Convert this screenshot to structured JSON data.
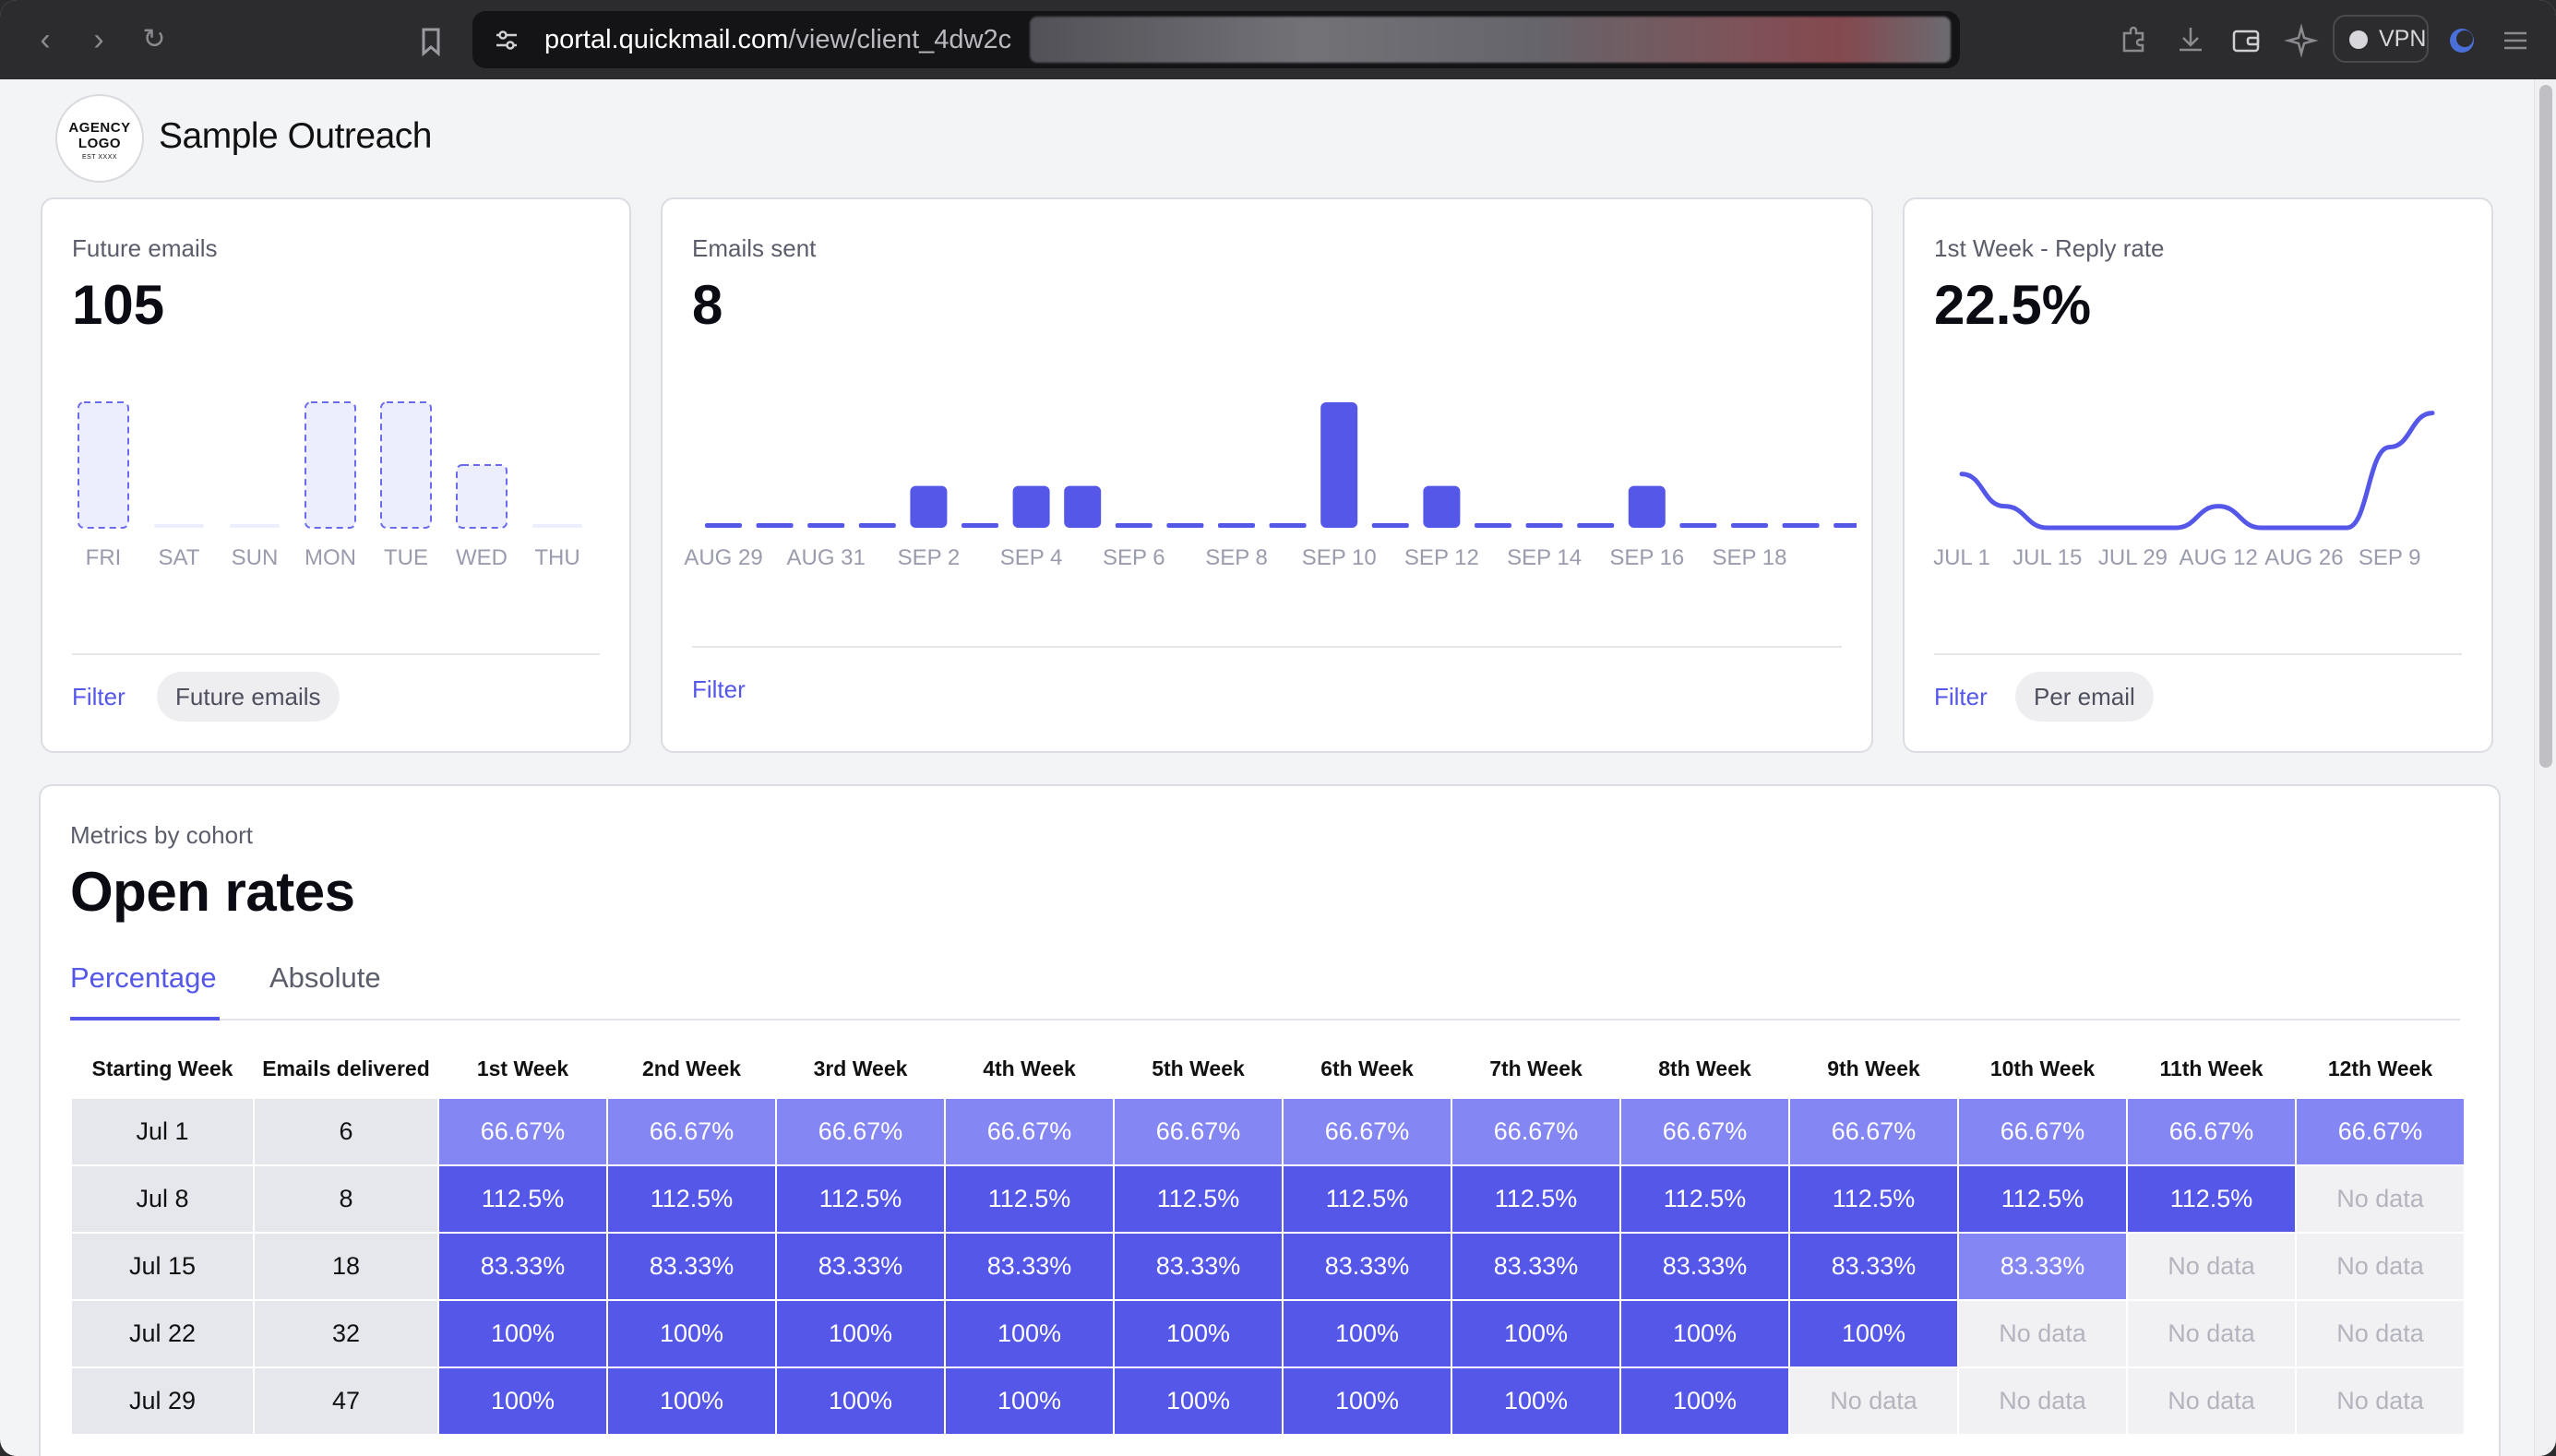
{
  "browser": {
    "url_host": "portal.quickmail.com",
    "url_path": "/view/client_4dw2c",
    "vpn_label": "VPN",
    "icons": [
      "back-icon",
      "forward-icon",
      "reload-icon",
      "bookmark-icon",
      "site-settings-icon",
      "extensions-icon",
      "downloads-icon",
      "wallet-icon",
      "ai-sparkle-icon",
      "profile-icon",
      "menu-icon"
    ]
  },
  "app": {
    "logo_line1": "AGENCY",
    "logo_line2": "LOGO",
    "logo_tagline": "EST XXXX",
    "title": "Sample Outreach"
  },
  "cards": {
    "future": {
      "label": "Future emails",
      "value": "105",
      "filter_label": "Filter",
      "chip_label": "Future emails"
    },
    "sent": {
      "label": "Emails sent",
      "value": "8",
      "filter_label": "Filter"
    },
    "reply": {
      "label": "1st Week - Reply rate",
      "value": "22.5%",
      "filter_label": "Filter",
      "chip_label": "Per email"
    }
  },
  "chart_data": [
    {
      "type": "bar",
      "style": "dashed-outline",
      "categories": [
        "FRI",
        "SAT",
        "SUN",
        "MON",
        "TUE",
        "WED",
        "THU"
      ],
      "values": [
        2,
        0,
        0,
        2,
        2,
        1,
        0
      ],
      "ylim": [
        0,
        2
      ]
    },
    {
      "type": "bar",
      "categories": [
        "AUG 29",
        "AUG 30",
        "AUG 31",
        "SEP 1",
        "SEP 2",
        "SEP 3",
        "SEP 4",
        "SEP 5",
        "SEP 6",
        "SEP 7",
        "SEP 8",
        "SEP 9",
        "SEP 10",
        "SEP 11",
        "SEP 12",
        "SEP 13",
        "SEP 14",
        "SEP 15",
        "SEP 16",
        "SEP 17",
        "SEP 18",
        "SEP 19",
        "SEP 20"
      ],
      "tick_labels": [
        "AUG 29",
        "AUG 31",
        "SEP 2",
        "SEP 4",
        "SEP 6",
        "SEP 8",
        "SEP 10",
        "SEP 12",
        "SEP 14",
        "SEP 16",
        "SEP 18"
      ],
      "values": [
        0,
        0,
        0,
        0,
        1,
        0,
        1,
        1,
        0,
        0,
        0,
        0,
        3,
        0,
        1,
        0,
        0,
        0,
        1,
        0,
        0,
        0,
        0
      ],
      "ylim": [
        0,
        3
      ],
      "color": "#5457e8"
    },
    {
      "type": "line",
      "x": [
        "JUL 1",
        "JUL 8",
        "JUL 15",
        "JUL 22",
        "JUL 29",
        "AUG 5",
        "AUG 12",
        "AUG 19",
        "AUG 26",
        "SEP 2",
        "SEP 9",
        "SEP 16"
      ],
      "tick_labels": [
        "JUL 1",
        "JUL 15",
        "JUL 29",
        "AUG 12",
        "AUG 26",
        "SEP 9"
      ],
      "values": [
        15,
        6,
        0,
        0,
        0,
        0,
        6,
        0,
        0,
        0,
        22.5,
        32
      ],
      "ylim": [
        0,
        35
      ],
      "color": "#5457e8"
    }
  ],
  "cohort": {
    "subtitle": "Metrics by cohort",
    "title": "Open rates",
    "tabs": [
      {
        "label": "Percentage",
        "active": true
      },
      {
        "label": "Absolute",
        "active": false
      }
    ],
    "columns": [
      "Starting Week",
      "Emails delivered",
      "1st Week",
      "2nd Week",
      "3rd Week",
      "4th Week",
      "5th Week",
      "6th Week",
      "7th Week",
      "8th Week",
      "9th Week",
      "10th Week",
      "11th Week",
      "12th Week"
    ],
    "rows": [
      {
        "week": "Jul 1",
        "delivered": "6",
        "cells": [
          "66.67%",
          "66.67%",
          "66.67%",
          "66.67%",
          "66.67%",
          "66.67%",
          "66.67%",
          "66.67%",
          "66.67%",
          "66.67%",
          "66.67%",
          "66.67%"
        ]
      },
      {
        "week": "Jul 8",
        "delivered": "8",
        "cells": [
          "112.5%",
          "112.5%",
          "112.5%",
          "112.5%",
          "112.5%",
          "112.5%",
          "112.5%",
          "112.5%",
          "112.5%",
          "112.5%",
          "112.5%",
          "No data"
        ]
      },
      {
        "week": "Jul 15",
        "delivered": "18",
        "cells": [
          "83.33%",
          "83.33%",
          "83.33%",
          "83.33%",
          "83.33%",
          "83.33%",
          "83.33%",
          "83.33%",
          "83.33%",
          "83.33%",
          "No data",
          "No data"
        ]
      },
      {
        "week": "Jul 22",
        "delivered": "32",
        "cells": [
          "100%",
          "100%",
          "100%",
          "100%",
          "100%",
          "100%",
          "100%",
          "100%",
          "100%",
          "No data",
          "No data",
          "No data"
        ]
      },
      {
        "week": "Jul 29",
        "delivered": "47",
        "cells": [
          "100%",
          "100%",
          "100%",
          "100%",
          "100%",
          "100%",
          "100%",
          "100%",
          "No data",
          "No data",
          "No data",
          "No data"
        ]
      }
    ],
    "colors": {
      "full": "#5457e8",
      "mid": "#8486f3",
      "nodata": "#f1f1f4",
      "static": "#e6e7ec"
    }
  }
}
